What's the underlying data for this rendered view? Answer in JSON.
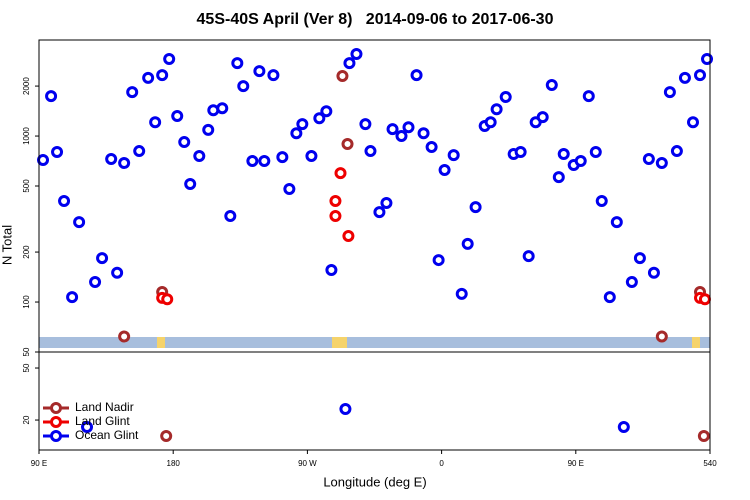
{
  "chart_data": [
    {
      "type": "scatter",
      "title": "45S-40S April (Ver 8)   2014-09-06 to 2017-06-30",
      "ylabel": "N Total",
      "log_y": true,
      "ylim": [
        50,
        3790
      ],
      "yticks": [
        50,
        100,
        200,
        500,
        1000,
        2000
      ],
      "series": [
        {
          "name": "Land Nadir",
          "color": "#a52a2a",
          "x": [
            147.1,
            172.6,
            293.5,
            296.9,
            507.7,
            533.3
          ],
          "values": [
            62,
            115,
            2300,
            895,
            62,
            115
          ]
        },
        {
          "name": "Land Glint",
          "color": "#ee0000",
          "x": [
            172.6,
            176.0,
            288.8,
            288.8,
            292.2,
            297.5,
            533.3,
            536.6
          ],
          "values": [
            106,
            104,
            406,
            330,
            598,
            250,
            106,
            104
          ]
        },
        {
          "name": "Ocean Glint",
          "color": "#0000ee",
          "x": [
            92.7,
            98.1,
            102.1,
            106.8,
            112.2,
            116.9,
            127.6,
            132.3,
            138.4,
            142.4,
            147.1,
            152.5,
            157.2,
            163.2,
            167.9,
            172.6,
            177.3,
            182.7,
            187.4,
            191.4,
            197.5,
            203.5,
            206.9,
            212.9,
            218.3,
            223.0,
            227.0,
            233.1,
            237.8,
            241.1,
            247.2,
            253.2,
            257.9,
            262.6,
            266.6,
            272.7,
            278.0,
            282.7,
            286.1,
            298.2,
            302.9,
            308.9,
            312.3,
            318.3,
            323.0,
            327.1,
            333.1,
            337.8,
            343.2,
            347.9,
            353.3,
            358.0,
            362.0,
            368.1,
            373.5,
            377.5,
            382.8,
            388.9,
            392.9,
            396.9,
            403.0,
            408.3,
            413.0,
            418.4,
            423.1,
            427.8,
            433.9,
            438.6,
            441.9,
            448.6,
            453.3,
            458.7,
            463.4,
            467.4,
            472.8,
            477.5,
            487.6,
            493.0,
            499.0,
            502.4,
            507.7,
            513.1,
            517.8,
            523.2,
            528.6,
            533.3,
            538.0
          ],
          "values": [
            717,
            1740,
            801,
            406,
            107,
            303,
            132,
            184,
            727,
            150,
            688,
            1840,
            812,
            2240,
            1210,
            2330,
            2910,
            1320,
            920,
            514,
            758,
            1090,
            1430,
            1470,
            330,
            2750,
            2000,
            707,
            2460,
            707,
            2330,
            747,
            480,
            1040,
            1180,
            758,
            1280,
            1410,
            156,
            2750,
            3120,
            1180,
            812,
            348,
            395,
            1100,
            1000,
            1130,
            2330,
            1040,
            859,
            179,
            624,
            768,
            112,
            224,
            373,
            1150,
            1210,
            1450,
            1720,
            779,
            801,
            189,
            1210,
            1300,
            2030,
            566,
            779,
            669,
            707,
            1740,
            801,
            406,
            107,
            303,
            132,
            184,
            727,
            150,
            688,
            1840,
            812,
            2240,
            1210,
            2330,
            2910
          ]
        }
      ]
    },
    {
      "type": "scatter",
      "xlabel": "Longitude (deg E)",
      "log_y": true,
      "ylim": [
        11.8,
        66.3
      ],
      "yticks": [
        20,
        50
      ],
      "xlim": [
        90,
        540
      ],
      "xticks": [
        {
          "value": 90,
          "label": "90 E"
        },
        180,
        {
          "value": 270,
          "label": "90 W"
        },
        {
          "value": 360,
          "label": "0"
        },
        {
          "value": 450,
          "label": "90 E"
        },
        540
      ],
      "legend": "lower left",
      "series": [
        {
          "color": "#a52a2a",
          "x": [
            175.3,
            535.9
          ],
          "values": [
            15.1,
            15.1
          ]
        },
        {
          "color": "#0000ee",
          "x": [
            122.2,
            295.5,
            482.2
          ],
          "values": [
            17.7,
            24.3,
            17.7
          ]
        }
      ]
    }
  ]
}
